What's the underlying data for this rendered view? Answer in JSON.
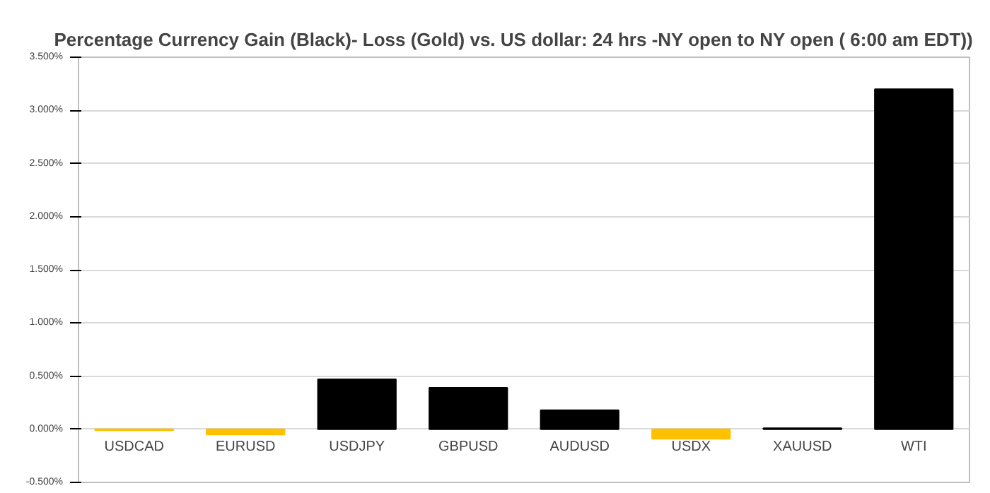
{
  "chart_data": {
    "type": "bar",
    "title": "Percentage Currency  Gain (Black)- Loss (Gold)  vs. US dollar:   24 hrs -NY open to NY open ( 6:00 am EDT))",
    "categories": [
      "USDCAD",
      "EURUSD",
      "USDJPY",
      "GBPUSD",
      "AUDUSD",
      "USDX",
      "XAUUSD",
      "WTI"
    ],
    "values": [
      -0.01,
      -0.05,
      0.47,
      0.39,
      0.18,
      -0.09,
      0.01,
      3.2
    ],
    "colors": [
      "#ffc000",
      "#ffc000",
      "#000000",
      "#000000",
      "#000000",
      "#ffc000",
      "#000000",
      "#000000"
    ],
    "ylim": [
      -0.5,
      3.5
    ],
    "yticks": [
      {
        "value": -0.5,
        "label": "-0.500%"
      },
      {
        "value": 0,
        "label": "0.000%"
      },
      {
        "value": 0.5,
        "label": "0.500%"
      },
      {
        "value": 1,
        "label": "1.000%"
      },
      {
        "value": 1.5,
        "label": "1.500%"
      },
      {
        "value": 2,
        "label": "2.000%"
      },
      {
        "value": 2.5,
        "label": "2.500%"
      },
      {
        "value": 3,
        "label": "3.000%"
      },
      {
        "value": 3.5,
        "label": "3.500%"
      }
    ],
    "grid": "y"
  }
}
